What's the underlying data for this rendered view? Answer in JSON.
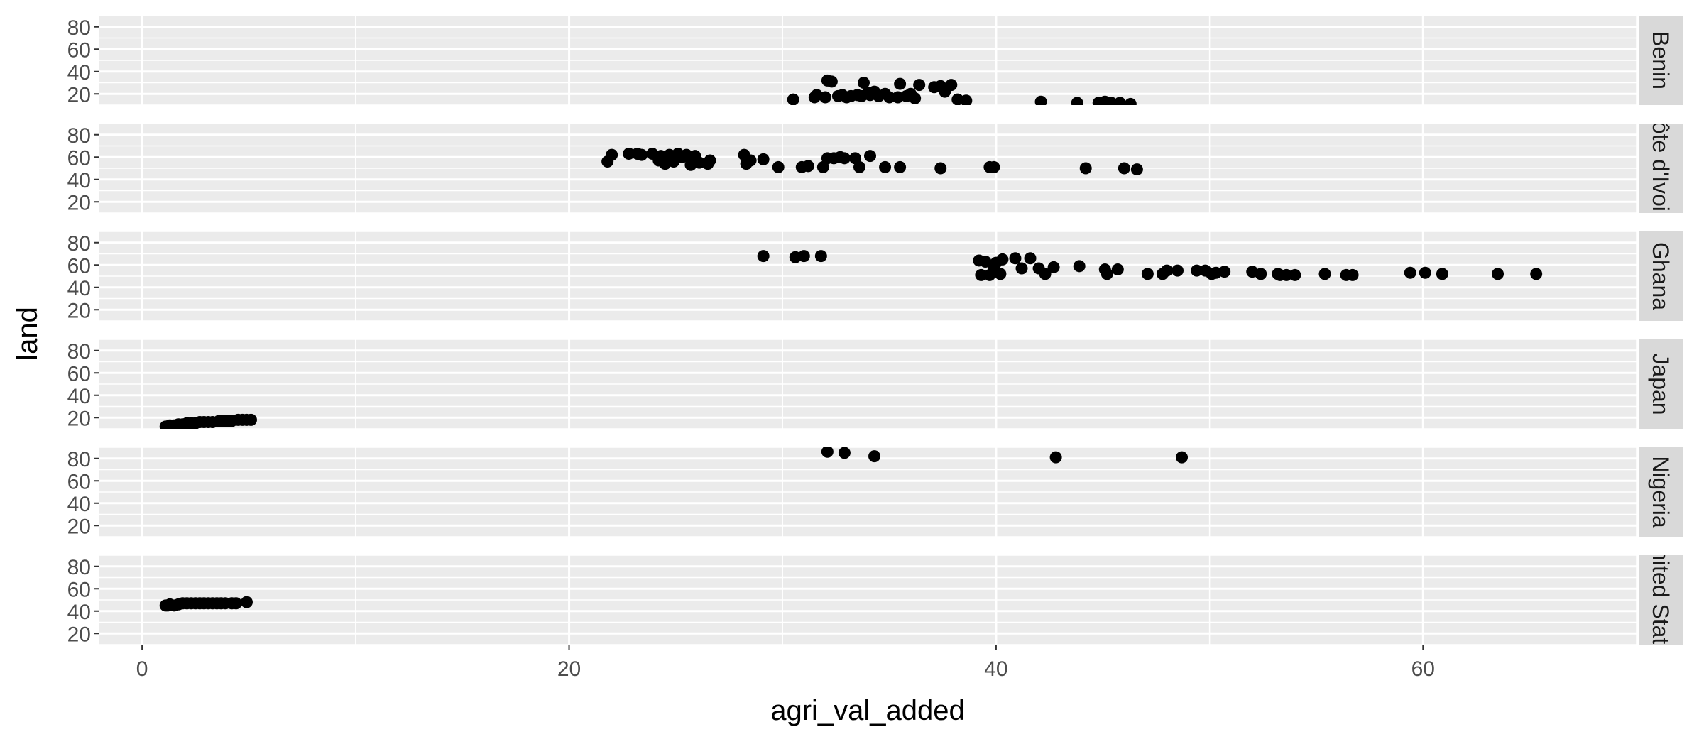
{
  "chart_data": {
    "type": "scatter",
    "xlabel": "agri_val_added",
    "ylabel": "land",
    "xlim": [
      -2,
      70
    ],
    "x_ticks": [
      0,
      20,
      40,
      60
    ],
    "ylim": [
      10,
      90
    ],
    "y_ticks": [
      20,
      40,
      60,
      80
    ],
    "grid": true,
    "colors": {
      "panel": "#EBEBEB",
      "grid": "#FFFFFF",
      "strip": "#D9D9D9",
      "point": "#000000",
      "text": "#4D4D4D",
      "title": "#000000"
    },
    "panels": [
      {
        "strip_label": "Benin",
        "points": [
          [
            30.5,
            15
          ],
          [
            31.5,
            17
          ],
          [
            31.6,
            19
          ],
          [
            32.0,
            17
          ],
          [
            32.1,
            32
          ],
          [
            32.3,
            31
          ],
          [
            32.6,
            18
          ],
          [
            32.8,
            19
          ],
          [
            33.0,
            17
          ],
          [
            33.2,
            18
          ],
          [
            33.5,
            19
          ],
          [
            33.7,
            18
          ],
          [
            33.8,
            30
          ],
          [
            34.0,
            21
          ],
          [
            34.1,
            19
          ],
          [
            34.3,
            22
          ],
          [
            34.5,
            18
          ],
          [
            34.8,
            20
          ],
          [
            35.0,
            17
          ],
          [
            35.4,
            17
          ],
          [
            35.5,
            29
          ],
          [
            35.8,
            18
          ],
          [
            36.0,
            20
          ],
          [
            36.2,
            16
          ],
          [
            36.4,
            28
          ],
          [
            37.1,
            26
          ],
          [
            37.4,
            27
          ],
          [
            37.6,
            22
          ],
          [
            37.9,
            28
          ],
          [
            38.2,
            15
          ],
          [
            38.6,
            14
          ],
          [
            42.1,
            13
          ],
          [
            43.8,
            12
          ],
          [
            44.8,
            12
          ],
          [
            45.1,
            13
          ],
          [
            45.4,
            12
          ],
          [
            45.8,
            12
          ],
          [
            46.3,
            11
          ]
        ]
      },
      {
        "strip_label": "Côte d'Ivoire",
        "points": [
          [
            21.8,
            56
          ],
          [
            22.0,
            62
          ],
          [
            22.8,
            63
          ],
          [
            23.2,
            63
          ],
          [
            23.4,
            62
          ],
          [
            23.9,
            63
          ],
          [
            24.2,
            57
          ],
          [
            24.3,
            61
          ],
          [
            24.5,
            54
          ],
          [
            24.7,
            62
          ],
          [
            24.9,
            56
          ],
          [
            25.1,
            63
          ],
          [
            25.3,
            60
          ],
          [
            25.5,
            62
          ],
          [
            25.7,
            53
          ],
          [
            25.9,
            61
          ],
          [
            26.1,
            55
          ],
          [
            26.5,
            54
          ],
          [
            26.6,
            57
          ],
          [
            28.2,
            62
          ],
          [
            28.3,
            54
          ],
          [
            28.5,
            57
          ],
          [
            29.1,
            58
          ],
          [
            29.8,
            51
          ],
          [
            30.9,
            51
          ],
          [
            31.2,
            52
          ],
          [
            31.9,
            51
          ],
          [
            32.1,
            59
          ],
          [
            32.4,
            59
          ],
          [
            32.7,
            60
          ],
          [
            32.9,
            59
          ],
          [
            33.4,
            59
          ],
          [
            33.6,
            51
          ],
          [
            34.1,
            61
          ],
          [
            34.8,
            51
          ],
          [
            35.5,
            51
          ],
          [
            37.4,
            50
          ],
          [
            39.7,
            51
          ],
          [
            39.9,
            51
          ],
          [
            44.2,
            50
          ],
          [
            46.0,
            50
          ],
          [
            46.6,
            49
          ]
        ]
      },
      {
        "strip_label": "Ghana",
        "points": [
          [
            29.1,
            68
          ],
          [
            30.6,
            67
          ],
          [
            31.0,
            68
          ],
          [
            31.8,
            68
          ],
          [
            39.2,
            64
          ],
          [
            39.5,
            63
          ],
          [
            39.3,
            51
          ],
          [
            39.7,
            51
          ],
          [
            39.9,
            57
          ],
          [
            40.0,
            62
          ],
          [
            40.2,
            52
          ],
          [
            40.3,
            65
          ],
          [
            40.9,
            66
          ],
          [
            41.2,
            57
          ],
          [
            41.6,
            66
          ],
          [
            42.0,
            57
          ],
          [
            42.3,
            52
          ],
          [
            42.7,
            58
          ],
          [
            43.9,
            59
          ],
          [
            45.1,
            56
          ],
          [
            45.2,
            52
          ],
          [
            45.7,
            56
          ],
          [
            47.1,
            52
          ],
          [
            47.8,
            52
          ],
          [
            48.0,
            55
          ],
          [
            48.5,
            55
          ],
          [
            49.4,
            55
          ],
          [
            49.8,
            55
          ],
          [
            50.1,
            52
          ],
          [
            50.3,
            53
          ],
          [
            50.7,
            54
          ],
          [
            52.0,
            54
          ],
          [
            52.4,
            52
          ],
          [
            53.2,
            52
          ],
          [
            53.3,
            51
          ],
          [
            53.6,
            51
          ],
          [
            54.0,
            51
          ],
          [
            55.4,
            52
          ],
          [
            56.4,
            51
          ],
          [
            56.7,
            51
          ],
          [
            59.4,
            53
          ],
          [
            60.1,
            53
          ],
          [
            60.9,
            52
          ],
          [
            63.5,
            52
          ],
          [
            65.3,
            52
          ]
        ]
      },
      {
        "strip_label": "Japan",
        "points": [
          [
            1.1,
            12
          ],
          [
            1.3,
            13
          ],
          [
            1.5,
            13
          ],
          [
            1.7,
            14
          ],
          [
            1.9,
            14
          ],
          [
            2.1,
            15
          ],
          [
            2.3,
            15
          ],
          [
            2.5,
            15
          ],
          [
            2.7,
            16
          ],
          [
            2.9,
            16
          ],
          [
            3.1,
            16
          ],
          [
            3.3,
            16
          ],
          [
            3.6,
            17
          ],
          [
            3.8,
            17
          ],
          [
            4.0,
            17
          ],
          [
            4.2,
            17
          ],
          [
            4.5,
            18
          ],
          [
            4.7,
            18
          ],
          [
            4.9,
            18
          ],
          [
            5.1,
            18
          ]
        ]
      },
      {
        "strip_label": "Nigeria",
        "points": [
          [
            32.1,
            86
          ],
          [
            32.9,
            85
          ],
          [
            34.3,
            82
          ],
          [
            42.8,
            81
          ],
          [
            48.7,
            81
          ]
        ]
      },
      {
        "strip_label": "United States",
        "points": [
          [
            1.1,
            45
          ],
          [
            1.2,
            45
          ],
          [
            1.3,
            46
          ],
          [
            1.5,
            45
          ],
          [
            1.7,
            46
          ],
          [
            1.9,
            47
          ],
          [
            2.1,
            47
          ],
          [
            2.3,
            47
          ],
          [
            2.5,
            47
          ],
          [
            2.7,
            47
          ],
          [
            2.9,
            47
          ],
          [
            3.1,
            47
          ],
          [
            3.3,
            47
          ],
          [
            3.5,
            47
          ],
          [
            3.7,
            47
          ],
          [
            3.9,
            47
          ],
          [
            4.2,
            47
          ],
          [
            4.4,
            47
          ],
          [
            4.9,
            48
          ]
        ]
      }
    ]
  }
}
